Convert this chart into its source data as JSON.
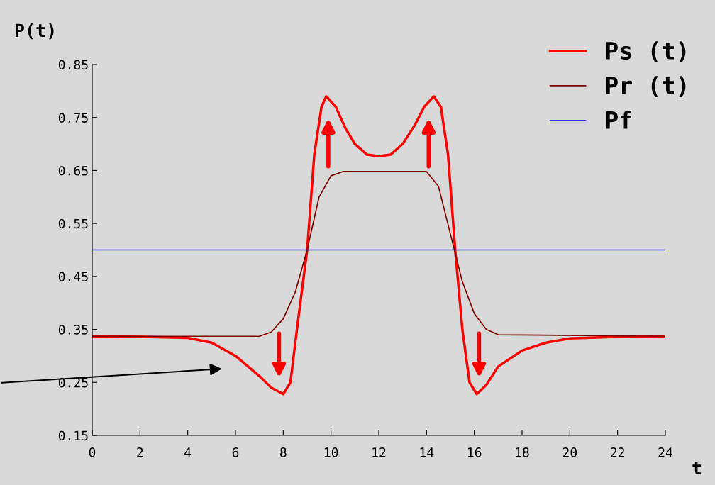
{
  "chart_data": {
    "type": "line",
    "xlabel": "t",
    "ylabel": "P(t)",
    "xlim": [
      0,
      24
    ],
    "xticks": [
      0,
      2,
      4,
      6,
      8,
      10,
      12,
      14,
      16,
      18,
      20,
      22,
      24
    ],
    "ylim": [
      0.15,
      0.85
    ],
    "yticks": [
      0.15,
      0.25,
      0.35,
      0.45,
      0.55,
      0.65,
      0.75,
      0.85
    ],
    "grid": false,
    "legend": "top right",
    "marker": "none",
    "line_style": "solid",
    "series": [
      {
        "name": "Ps (t)",
        "color": "#ff0000",
        "x": [
          0,
          2,
          4,
          5,
          6,
          7,
          7.5,
          8,
          8.3,
          8.6,
          9,
          9.3,
          9.6,
          9.8,
          10.2,
          10.6,
          11,
          11.5,
          12,
          12.5,
          13,
          13.5,
          13.9,
          14.3,
          14.6,
          14.9,
          15.2,
          15.5,
          15.8,
          16.1,
          16.5,
          17,
          18,
          19,
          20,
          22,
          24
        ],
        "values": [
          0.337,
          0.336,
          0.334,
          0.325,
          0.3,
          0.262,
          0.24,
          0.228,
          0.25,
          0.36,
          0.5,
          0.68,
          0.77,
          0.79,
          0.77,
          0.73,
          0.7,
          0.68,
          0.677,
          0.68,
          0.7,
          0.735,
          0.77,
          0.79,
          0.77,
          0.68,
          0.5,
          0.35,
          0.25,
          0.228,
          0.245,
          0.28,
          0.31,
          0.325,
          0.333,
          0.336,
          0.337
        ]
      },
      {
        "name": "Pr (t)",
        "color": "#800000",
        "x": [
          0,
          7,
          7.5,
          8,
          8.5,
          9,
          9.5,
          10,
          10.5,
          12,
          14,
          14.5,
          15,
          15.5,
          16,
          16.5,
          17,
          24
        ],
        "values": [
          0.337,
          0.337,
          0.345,
          0.37,
          0.42,
          0.5,
          0.6,
          0.64,
          0.648,
          0.648,
          0.648,
          0.62,
          0.53,
          0.44,
          0.38,
          0.35,
          0.34,
          0.337
        ]
      },
      {
        "name": "Pf",
        "color": "#3333ff",
        "x": [
          0,
          24
        ],
        "values": [
          0.5,
          0.5
        ]
      }
    ]
  }
}
